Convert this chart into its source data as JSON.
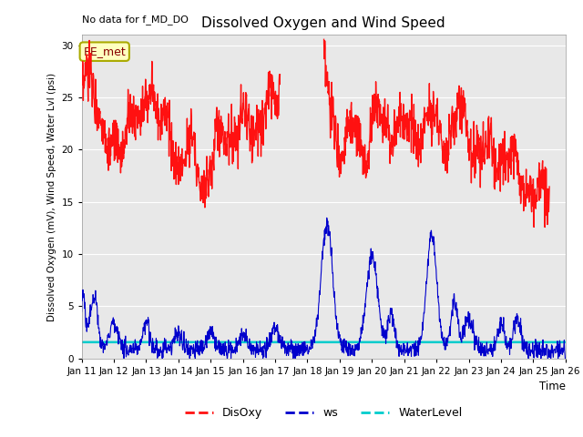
{
  "title": "Dissolved Oxygen and Wind Speed",
  "no_data_text": "No data for f_MD_DO",
  "ylabel": "Dissolved Oxygen (mV), Wind Speed, Water Lvl (psi)",
  "xlabel": "Time",
  "annotation_box": "EE_met",
  "ylim": [
    0,
    31
  ],
  "yticks": [
    0,
    5,
    10,
    15,
    20,
    25,
    30
  ],
  "background_color": "#e8e8e8",
  "fig_color": "#ffffff",
  "disoxy_color": "#ff1111",
  "ws_color": "#0000cc",
  "waterlevel_color": "#00cccc",
  "waterlevel_value": 1.55,
  "x_start": 11,
  "x_end": 26,
  "xtick_labels": [
    "Jan 11",
    "Jan 12",
    "Jan 13",
    "Jan 14",
    "Jan 15",
    "Jan 16",
    "Jan 17",
    "Jan 18",
    "Jan 19",
    "Jan 20",
    "Jan 21",
    "Jan 22",
    "Jan 23",
    "Jan 24",
    "Jan 25",
    "Jan 26"
  ],
  "xtick_positions": [
    11,
    12,
    13,
    14,
    15,
    16,
    17,
    18,
    19,
    20,
    21,
    22,
    23,
    24,
    25,
    26
  ],
  "figsize": [
    6.4,
    4.8
  ],
  "dpi": 100
}
